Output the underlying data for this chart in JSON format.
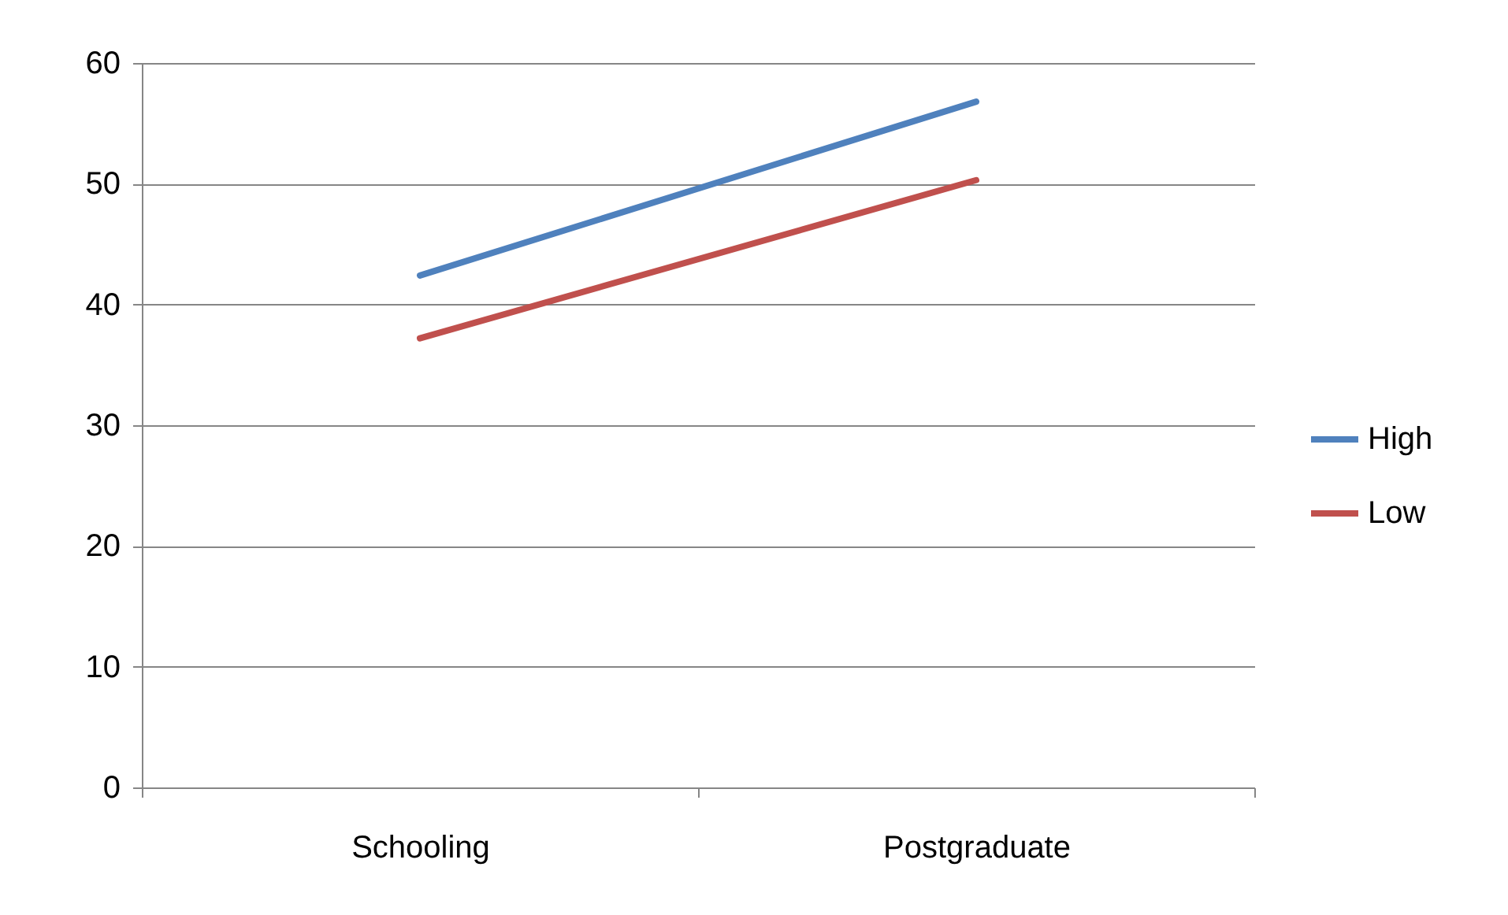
{
  "chart_data": {
    "type": "line",
    "categories": [
      "Schooling",
      "Postgraduate"
    ],
    "series": [
      {
        "name": "High",
        "color": "#4f81bd",
        "values": [
          42.4,
          56.8
        ]
      },
      {
        "name": "Low",
        "color": "#c0504d",
        "values": [
          37.2,
          50.3
        ]
      }
    ],
    "ylim": [
      0,
      60
    ],
    "yticks": [
      0,
      10,
      20,
      30,
      40,
      50,
      60
    ],
    "grid": "y",
    "legend": "right",
    "marker": "none",
    "line_style": "solid"
  }
}
